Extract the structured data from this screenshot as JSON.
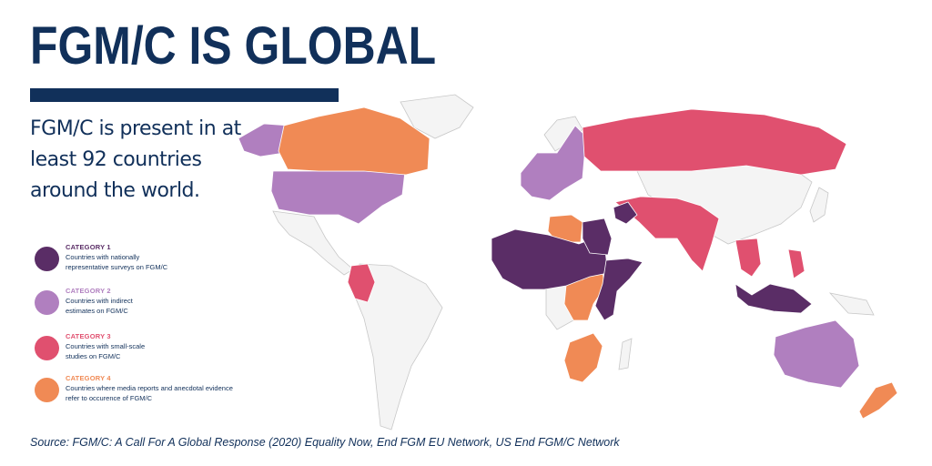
{
  "title": "FGM/C IS GLOBAL",
  "subtitle": "FGM/C is present in at least 92 countries around the world.",
  "legend": [
    {
      "category": "CATEGORY 1",
      "description": "Countries with nationally representative surveys on FGM/C",
      "color": "#5a2d66"
    },
    {
      "category": "CATEGORY 2",
      "description": "Countries with indirect estimates on FGM/C",
      "color": "#b07fbf"
    },
    {
      "category": "CATEGORY 3",
      "description": "Countries with small-scale studies on FGM/C",
      "color": "#e0506f"
    },
    {
      "category": "CATEGORY 4",
      "description": "Countries where media reports and anecdotal evidence refer to occurence of FGM/C",
      "color": "#f08a55"
    }
  ],
  "colors": {
    "land": "#f4f4f4",
    "border": "#c8c8c8",
    "accent": "#11305a"
  },
  "source": "Source: FGM/C: A Call For A Global Response (2020) Equality Now, End FGM EU Network, US End FGM/C Network"
}
